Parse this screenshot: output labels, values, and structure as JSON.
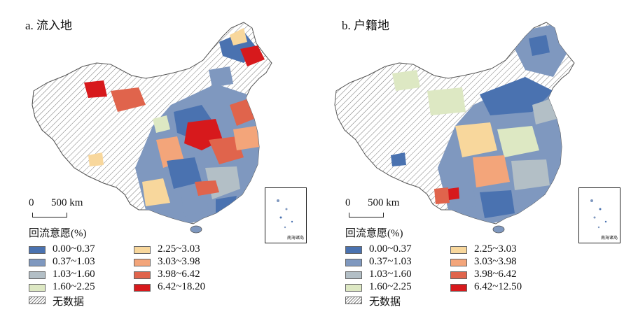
{
  "panels": [
    {
      "title": "a. 流入地",
      "scale_zero": "0",
      "scale_distance": "500 km",
      "inset_label": "南海诸岛",
      "legend": {
        "title": "回流意愿(%)",
        "classes": [
          {
            "label": "0.00~0.37",
            "color": "#4a72b0"
          },
          {
            "label": "0.37~1.03",
            "color": "#7f98bf"
          },
          {
            "label": "1.03~1.60",
            "color": "#b3bfc6"
          },
          {
            "label": "1.60~2.25",
            "color": "#dde8c3"
          },
          {
            "label": "2.25~3.03",
            "color": "#f8d79c"
          },
          {
            "label": "3.03~3.98",
            "color": "#f3a57a"
          },
          {
            "label": "3.98~6.42",
            "color": "#e0644c"
          },
          {
            "label": "6.42~18.20",
            "color": "#d7191c"
          }
        ],
        "no_data": "无数据"
      }
    },
    {
      "title": "b. 户籍地",
      "scale_zero": "0",
      "scale_distance": "500 km",
      "inset_label": "南海诸岛",
      "legend": {
        "title": "回流意愿(%)",
        "classes": [
          {
            "label": "0.00~0.37",
            "color": "#4a72b0"
          },
          {
            "label": "0.37~1.03",
            "color": "#7f98bf"
          },
          {
            "label": "1.03~1.60",
            "color": "#b3bfc6"
          },
          {
            "label": "1.60~2.25",
            "color": "#dde8c3"
          },
          {
            "label": "2.25~3.03",
            "color": "#f8d79c"
          },
          {
            "label": "3.03~3.98",
            "color": "#f3a57a"
          },
          {
            "label": "3.98~6.42",
            "color": "#e0644c"
          },
          {
            "label": "6.42~12.50",
            "color": "#d7191c"
          }
        ],
        "no_data": "无数据"
      }
    }
  ]
}
